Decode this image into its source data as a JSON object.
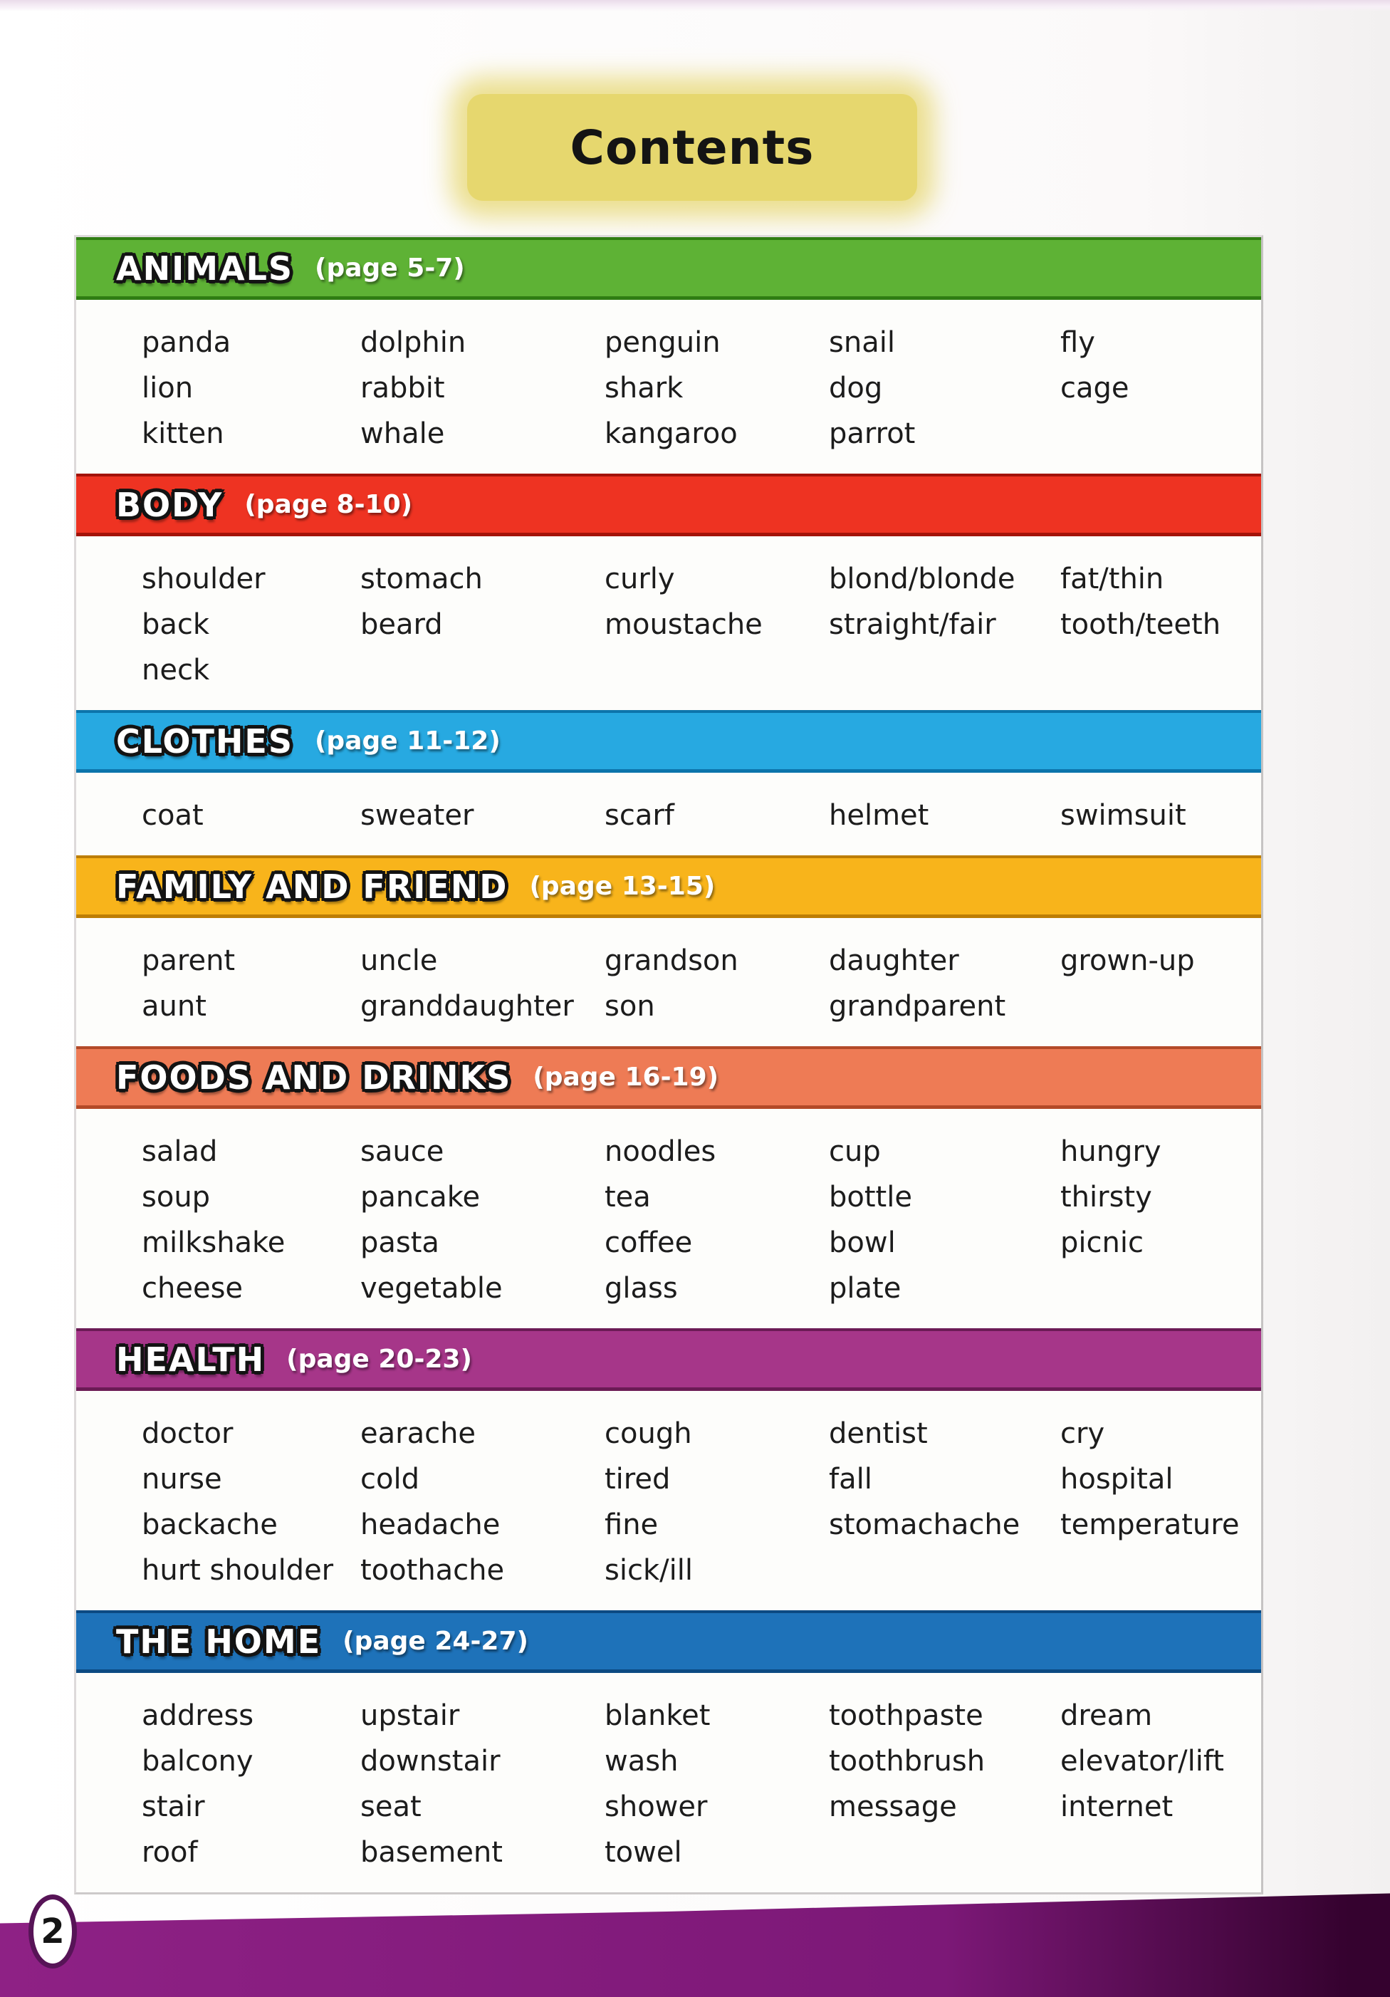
{
  "page": {
    "title": "Contents",
    "page_number": "2"
  },
  "colors": {
    "title_box": "#e6d76e",
    "band_left": "#8e2185",
    "band_mid": "#7c1877",
    "band_right": "#35022f",
    "badge_border": "#571457"
  },
  "sections": [
    {
      "id": "animals",
      "name": "ANIMALS",
      "page_range": "(page 5-7)",
      "color": "#5eb235",
      "edge": "#2f7d12",
      "columns": [
        [
          "panda",
          "lion",
          "kitten"
        ],
        [
          "dolphin",
          "rabbit",
          "whale"
        ],
        [
          "penguin",
          "shark",
          "kangaroo"
        ],
        [
          "snail",
          "dog",
          "parrot"
        ],
        [
          "fly",
          "cage"
        ]
      ]
    },
    {
      "id": "body",
      "name": "BODY",
      "page_range": "(page 8-10)",
      "color": "#ee3322",
      "edge": "#a31309",
      "columns": [
        [
          "shoulder",
          "back",
          "neck"
        ],
        [
          "stomach",
          "beard"
        ],
        [
          "curly",
          "moustache"
        ],
        [
          "blond/blonde",
          "straight/fair"
        ],
        [
          "fat/thin",
          "tooth/teeth"
        ]
      ]
    },
    {
      "id": "clothes",
      "name": "CLOTHES",
      "page_range": "(page 11-12)",
      "color": "#27a9e1",
      "edge": "#0c74ab",
      "columns": [
        [
          "coat"
        ],
        [
          "sweater"
        ],
        [
          "scarf"
        ],
        [
          "helmet"
        ],
        [
          "swimsuit"
        ]
      ]
    },
    {
      "id": "family-and-friend",
      "name": "FAMILY AND FRIEND",
      "page_range": "(page 13-15)",
      "color": "#f8b41b",
      "edge": "#bd7e05",
      "columns": [
        [
          "parent",
          "aunt"
        ],
        [
          "uncle",
          "granddaughter"
        ],
        [
          "grandson",
          "son"
        ],
        [
          "daughter",
          "grandparent"
        ],
        [
          "grown-up"
        ]
      ]
    },
    {
      "id": "foods-and-drinks",
      "name": "FOODS AND DRINKS",
      "page_range": "(page 16-19)",
      "color": "#ee7b55",
      "edge": "#b34a28",
      "columns": [
        [
          "salad",
          "soup",
          "milkshake",
          "cheese"
        ],
        [
          "sauce",
          "pancake",
          "pasta",
          "vegetable"
        ],
        [
          "noodles",
          "tea",
          "coffee",
          "glass"
        ],
        [
          "cup",
          "bottle",
          "bowl",
          "plate"
        ],
        [
          "hungry",
          "thirsty",
          "picnic"
        ]
      ]
    },
    {
      "id": "health",
      "name": "HEALTH",
      "page_range": "(page 20-23)",
      "color": "#a63689",
      "edge": "#6b1b55",
      "columns": [
        [
          "doctor",
          "nurse",
          "backache",
          "hurt shoulder"
        ],
        [
          "earache",
          "cold",
          "headache",
          "toothache"
        ],
        [
          "cough",
          "tired",
          "fine",
          "sick/ill"
        ],
        [
          "dentist",
          "fall",
          "stomachache"
        ],
        [
          "cry",
          "hospital",
          "temperature"
        ]
      ]
    },
    {
      "id": "the-home",
      "name": "THE HOME",
      "page_range": "(page 24-27)",
      "color": "#1e72b9",
      "edge": "#0c4a82",
      "columns": [
        [
          "address",
          "balcony",
          "stair",
          "roof"
        ],
        [
          "upstair",
          "downstair",
          "seat",
          "basement"
        ],
        [
          "blanket",
          "wash",
          "shower",
          "towel"
        ],
        [
          "toothpaste",
          "toothbrush",
          "message"
        ],
        [
          "dream",
          "elevator/lift",
          "internet"
        ]
      ]
    }
  ]
}
